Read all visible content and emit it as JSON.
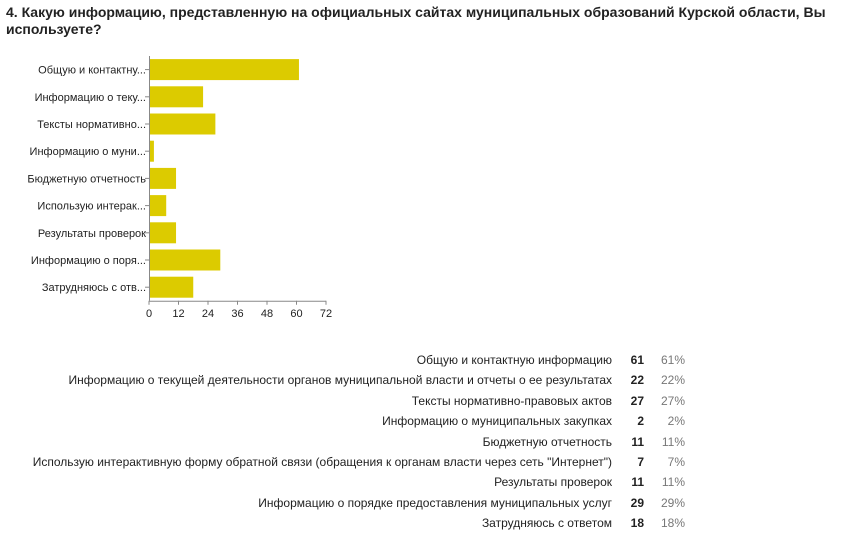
{
  "question": {
    "title": "4. Какую информацию, представленную на официальных сайтах муниципальных образований Курской области, Вы используете?"
  },
  "chart_data": {
    "type": "bar",
    "orientation": "horizontal",
    "bar_color": "#dccb00",
    "categories": [
      "Общую и контактну...",
      "Информацию о теку...",
      "Тексты нормативно...",
      "Информацию о муни...",
      "Бюджетную отчетность",
      "Использую интерак...",
      "Результаты проверок",
      "Информацию о поря...",
      "Затрудняюсь с отв..."
    ],
    "values": [
      61,
      22,
      27,
      2,
      11,
      7,
      11,
      29,
      18
    ],
    "xlim": [
      0,
      72
    ],
    "xticks": [
      0,
      12,
      24,
      36,
      48,
      60,
      72
    ],
    "grid": false
  },
  "table": {
    "rows": [
      {
        "label": "Общую и контактную информацию",
        "count": "61",
        "percent": "61%"
      },
      {
        "label": "Информацию о текущей деятельности органов муниципальной власти и отчеты о ее результатах",
        "count": "22",
        "percent": "22%"
      },
      {
        "label": "Тексты нормативно-правовых актов",
        "count": "27",
        "percent": "27%"
      },
      {
        "label": "Информацию о муниципальных закупках",
        "count": "2",
        "percent": "2%"
      },
      {
        "label": "Бюджетную отчетность",
        "count": "11",
        "percent": "11%"
      },
      {
        "label": "Использую интерактивную форму обратной связи (обращения к органам власти через сеть \"Интернет\")",
        "count": "7",
        "percent": "7%"
      },
      {
        "label": "Результаты проверок",
        "count": "11",
        "percent": "11%"
      },
      {
        "label": "Информацию о порядке предоставления муниципальных услуг",
        "count": "29",
        "percent": "29%"
      },
      {
        "label": "Затрудняюсь с ответом",
        "count": "18",
        "percent": "18%"
      }
    ]
  }
}
